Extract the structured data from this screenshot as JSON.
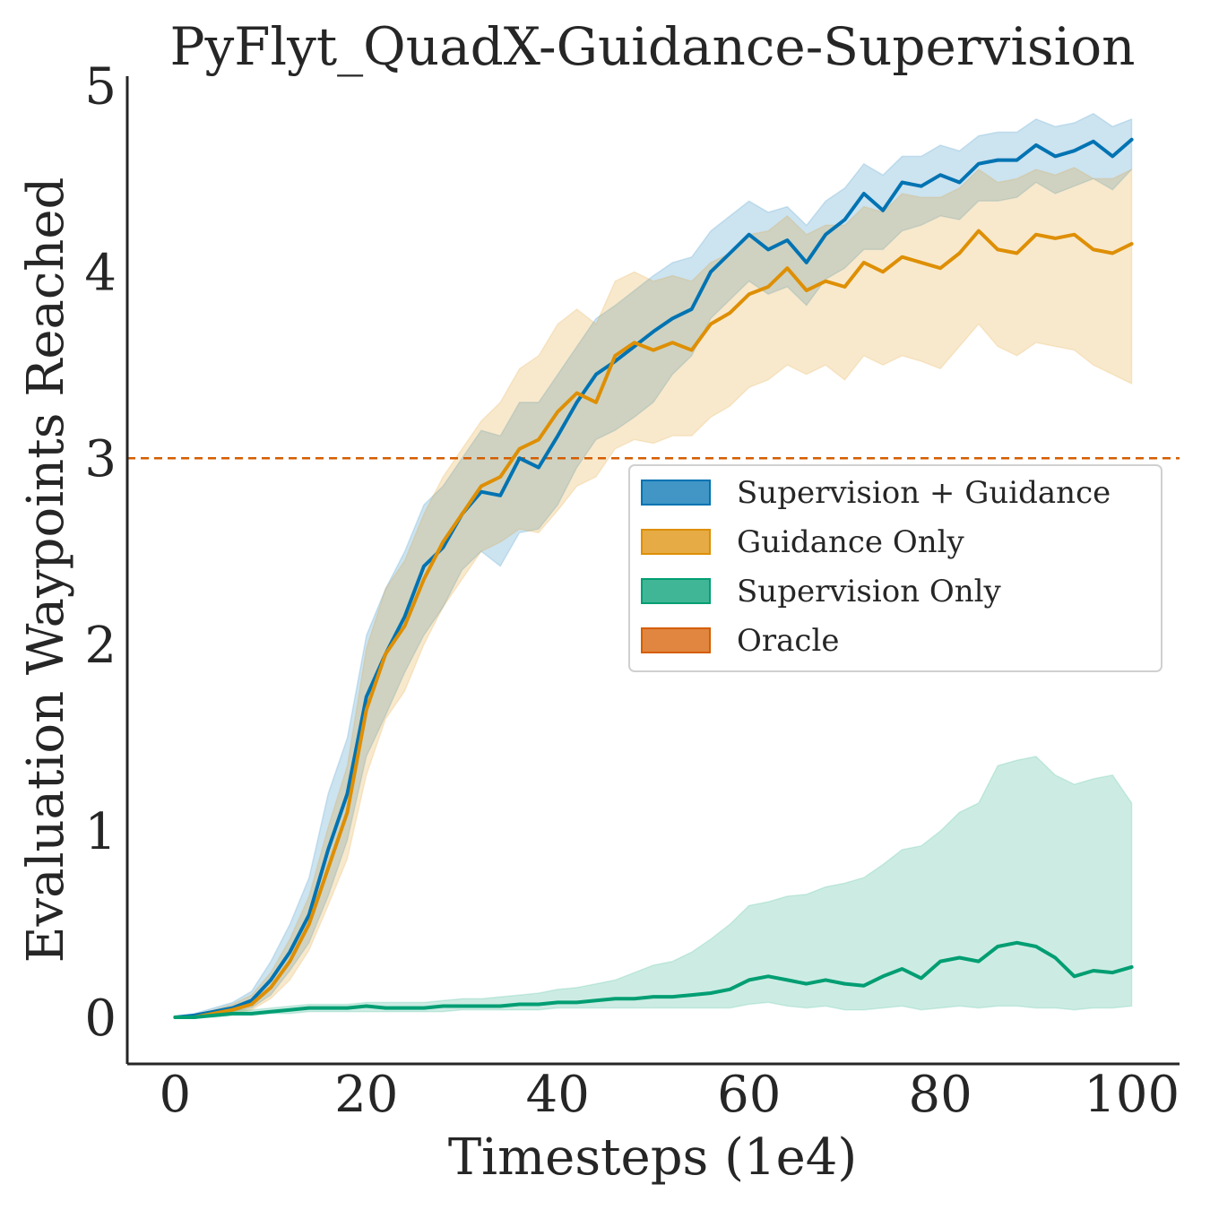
{
  "chart_data": {
    "type": "line",
    "title": "PyFlyt_QuadX-Guidance-Supervision",
    "xlabel": "Timesteps (1e4)",
    "ylabel": "Evaluation Waypoints Reached",
    "xlim": [
      -5,
      105
    ],
    "ylim": [
      -0.25,
      5.05
    ],
    "xticks": [
      0,
      20,
      40,
      60,
      80,
      100
    ],
    "yticks": [
      0,
      1,
      2,
      3,
      4,
      5
    ],
    "grid": false,
    "legend_position": "center-right",
    "oracle": {
      "name": "Oracle",
      "value": 3.0,
      "color": "#d55e00"
    },
    "series": [
      {
        "name": "Supervision + Guidance",
        "color": "#0173b2",
        "x": [
          0,
          2,
          4,
          6,
          8,
          10,
          12,
          14,
          16,
          18,
          20,
          22,
          24,
          26,
          28,
          30,
          32,
          34,
          36,
          38,
          40,
          42,
          44,
          46,
          48,
          50,
          52,
          54,
          56,
          58,
          60,
          62,
          64,
          66,
          68,
          70,
          72,
          74,
          76,
          78,
          80,
          82,
          84,
          86,
          88,
          90,
          92,
          94,
          96,
          98,
          100
        ],
        "mean": [
          0,
          0.01,
          0.03,
          0.05,
          0.09,
          0.2,
          0.35,
          0.55,
          0.9,
          1.2,
          1.72,
          1.95,
          2.15,
          2.42,
          2.52,
          2.7,
          2.82,
          2.8,
          3.0,
          2.95,
          3.12,
          3.3,
          3.45,
          3.52,
          3.6,
          3.68,
          3.75,
          3.8,
          4.0,
          4.1,
          4.2,
          4.12,
          4.17,
          4.05,
          4.2,
          4.28,
          4.42,
          4.33,
          4.48,
          4.46,
          4.52,
          4.48,
          4.58,
          4.6,
          4.6,
          4.68,
          4.62,
          4.65,
          4.7,
          4.62,
          4.71
        ],
        "lower": [
          0,
          0.0,
          0.01,
          0.03,
          0.05,
          0.12,
          0.25,
          0.4,
          0.65,
          0.95,
          1.4,
          1.62,
          1.85,
          2.05,
          2.2,
          2.4,
          2.5,
          2.42,
          2.6,
          2.62,
          2.75,
          2.95,
          3.1,
          3.15,
          3.22,
          3.3,
          3.45,
          3.55,
          3.75,
          3.85,
          3.95,
          3.88,
          3.92,
          3.82,
          3.96,
          4.02,
          4.12,
          4.12,
          4.22,
          4.25,
          4.3,
          4.28,
          4.38,
          4.38,
          4.4,
          4.48,
          4.42,
          4.46,
          4.5,
          4.44,
          4.55
        ],
        "upper": [
          0,
          0.02,
          0.05,
          0.08,
          0.14,
          0.3,
          0.5,
          0.75,
          1.2,
          1.5,
          2.05,
          2.3,
          2.5,
          2.75,
          2.85,
          3.0,
          3.15,
          3.12,
          3.3,
          3.3,
          3.45,
          3.6,
          3.75,
          3.82,
          3.9,
          3.98,
          4.05,
          4.08,
          4.22,
          4.3,
          4.38,
          4.32,
          4.35,
          4.25,
          4.38,
          4.45,
          4.58,
          4.52,
          4.62,
          4.62,
          4.68,
          4.65,
          4.73,
          4.75,
          4.75,
          4.82,
          4.78,
          4.8,
          4.85,
          4.78,
          4.82
        ]
      },
      {
        "name": "Guidance Only",
        "color": "#de8f05",
        "x": [
          0,
          2,
          4,
          6,
          8,
          10,
          12,
          14,
          16,
          18,
          20,
          22,
          24,
          26,
          28,
          30,
          32,
          34,
          36,
          38,
          40,
          42,
          44,
          46,
          48,
          50,
          52,
          54,
          56,
          58,
          60,
          62,
          64,
          66,
          68,
          70,
          72,
          74,
          76,
          78,
          80,
          82,
          84,
          86,
          88,
          90,
          92,
          94,
          96,
          98,
          100
        ],
        "mean": [
          0,
          0.0,
          0.02,
          0.04,
          0.07,
          0.16,
          0.3,
          0.5,
          0.8,
          1.1,
          1.65,
          1.95,
          2.1,
          2.35,
          2.55,
          2.7,
          2.85,
          2.9,
          3.05,
          3.1,
          3.25,
          3.35,
          3.3,
          3.55,
          3.62,
          3.58,
          3.62,
          3.58,
          3.72,
          3.78,
          3.88,
          3.92,
          4.02,
          3.9,
          3.95,
          3.92,
          4.05,
          4.0,
          4.08,
          4.05,
          4.02,
          4.1,
          4.22,
          4.12,
          4.1,
          4.2,
          4.18,
          4.2,
          4.12,
          4.1,
          4.15
        ],
        "lower": [
          0,
          0.0,
          0.01,
          0.02,
          0.04,
          0.1,
          0.2,
          0.36,
          0.6,
          0.85,
          1.3,
          1.6,
          1.75,
          2.0,
          2.2,
          2.35,
          2.5,
          2.55,
          2.62,
          2.6,
          2.72,
          2.85,
          2.9,
          3.05,
          3.1,
          3.08,
          3.12,
          3.12,
          3.22,
          3.28,
          3.38,
          3.42,
          3.5,
          3.45,
          3.5,
          3.42,
          3.55,
          3.5,
          3.55,
          3.52,
          3.48,
          3.6,
          3.72,
          3.6,
          3.55,
          3.62,
          3.6,
          3.58,
          3.5,
          3.45,
          3.4
        ],
        "upper": [
          0,
          0.01,
          0.04,
          0.07,
          0.12,
          0.24,
          0.42,
          0.65,
          1.02,
          1.35,
          1.98,
          2.3,
          2.45,
          2.7,
          2.9,
          3.05,
          3.2,
          3.3,
          3.48,
          3.55,
          3.72,
          3.8,
          3.72,
          3.95,
          4.0,
          3.95,
          3.98,
          3.95,
          4.05,
          4.1,
          4.2,
          4.22,
          4.3,
          4.2,
          4.25,
          4.25,
          4.35,
          4.32,
          4.42,
          4.4,
          4.4,
          4.45,
          4.55,
          4.48,
          4.5,
          4.55,
          4.52,
          4.56,
          4.5,
          4.5,
          4.55
        ]
      },
      {
        "name": "Supervision Only",
        "color": "#029e73",
        "x": [
          0,
          2,
          4,
          6,
          8,
          10,
          12,
          14,
          16,
          18,
          20,
          22,
          24,
          26,
          28,
          30,
          32,
          34,
          36,
          38,
          40,
          42,
          44,
          46,
          48,
          50,
          52,
          54,
          56,
          58,
          60,
          62,
          64,
          66,
          68,
          70,
          72,
          74,
          76,
          78,
          80,
          82,
          84,
          86,
          88,
          90,
          92,
          94,
          96,
          98,
          100
        ],
        "mean": [
          0,
          0.0,
          0.01,
          0.02,
          0.02,
          0.03,
          0.04,
          0.05,
          0.05,
          0.05,
          0.06,
          0.05,
          0.05,
          0.05,
          0.06,
          0.06,
          0.06,
          0.06,
          0.07,
          0.07,
          0.08,
          0.08,
          0.09,
          0.1,
          0.1,
          0.11,
          0.11,
          0.12,
          0.13,
          0.15,
          0.2,
          0.22,
          0.2,
          0.18,
          0.2,
          0.18,
          0.17,
          0.22,
          0.26,
          0.21,
          0.3,
          0.32,
          0.3,
          0.38,
          0.4,
          0.38,
          0.32,
          0.22,
          0.25,
          0.24,
          0.27
        ],
        "lower": [
          0,
          0.0,
          0.0,
          0.01,
          0.01,
          0.02,
          0.02,
          0.03,
          0.03,
          0.03,
          0.03,
          0.03,
          0.03,
          0.03,
          0.03,
          0.04,
          0.04,
          0.04,
          0.04,
          0.04,
          0.05,
          0.05,
          0.05,
          0.05,
          0.05,
          0.05,
          0.05,
          0.05,
          0.05,
          0.05,
          0.07,
          0.08,
          0.06,
          0.05,
          0.06,
          0.04,
          0.04,
          0.05,
          0.06,
          0.04,
          0.05,
          0.06,
          0.05,
          0.06,
          0.06,
          0.05,
          0.05,
          0.04,
          0.05,
          0.05,
          0.06
        ],
        "upper": [
          0,
          0.01,
          0.02,
          0.04,
          0.04,
          0.05,
          0.06,
          0.07,
          0.07,
          0.07,
          0.08,
          0.08,
          0.08,
          0.08,
          0.09,
          0.1,
          0.1,
          0.11,
          0.12,
          0.13,
          0.15,
          0.16,
          0.18,
          0.2,
          0.24,
          0.28,
          0.3,
          0.35,
          0.42,
          0.5,
          0.6,
          0.62,
          0.65,
          0.66,
          0.7,
          0.72,
          0.75,
          0.82,
          0.9,
          0.92,
          1.0,
          1.1,
          1.15,
          1.35,
          1.38,
          1.4,
          1.3,
          1.25,
          1.28,
          1.3,
          1.15
        ]
      }
    ]
  }
}
